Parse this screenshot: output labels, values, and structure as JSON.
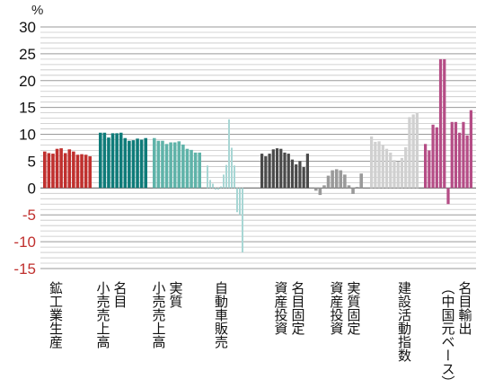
{
  "chart_data": {
    "type": "bar",
    "unit_label": "%",
    "ylim": [
      -15,
      30
    ],
    "yticks": [
      30,
      25,
      20,
      15,
      10,
      5,
      0,
      -5,
      -10,
      -15
    ],
    "minor_gridlines": true,
    "grid": true,
    "groups": [
      {
        "label_lines": [
          "鉱工業生産"
        ],
        "color": "#c0302e",
        "values": [
          6.8,
          6.5,
          6.4,
          7.3,
          7.4,
          6.5,
          7.2,
          6.8,
          6.2,
          6.3,
          6.2,
          5.9
        ]
      },
      {
        "label_lines": [
          "名目",
          "小売売上高"
        ],
        "color": "#0e7b79",
        "values": [
          10.3,
          10.3,
          9.4,
          10.2,
          10.2,
          10.3,
          9.3,
          8.8,
          8.9,
          9.2,
          9.0,
          9.3
        ]
      },
      {
        "label_lines": [
          "実質",
          "小売売上高"
        ],
        "color": "#5fb3a9",
        "values": [
          9.3,
          8.8,
          8.8,
          8.2,
          8.5,
          8.5,
          8.7,
          8.1,
          7.3,
          7.1,
          6.6,
          6.6
        ]
      },
      {
        "label_lines": [
          "自動車販売"
        ],
        "color": "#a8d6d4",
        "values": [
          4.2,
          1.5,
          0.8,
          -0.3,
          -0.3,
          0.3,
          2.5,
          4.3,
          12.8,
          7.5,
          4.2,
          -4.5,
          -5.0,
          -12.0
        ]
      },
      {
        "label_lines": [
          "名目固定",
          "資産投資"
        ],
        "color": "#4a4a4a",
        "values": [
          6.4,
          5.9,
          6.4,
          7.2,
          7.4,
          7.3,
          6.6,
          6.4,
          5.3,
          4.4,
          5.0,
          3.9,
          6.4
        ]
      },
      {
        "label_lines": [
          "実質固定",
          "資産投資"
        ],
        "color": "#9a9a9a",
        "values": [
          -0.5,
          -1.3,
          0.5,
          2.3,
          3.3,
          3.5,
          3.3,
          2.5,
          0.5,
          -1.1,
          0.2,
          2.7
        ]
      },
      {
        "label_lines": [
          "建設活動指数"
        ],
        "color": "#d0d0d0",
        "values": [
          9.6,
          8.6,
          8.7,
          8.0,
          7.3,
          6.6,
          5.2,
          4.9,
          5.6,
          7.6,
          13.2,
          13.7,
          14.0
        ]
      },
      {
        "label_lines": [
          "名目輸出",
          "（中国元ベース）"
        ],
        "color": "#b54d86",
        "values": [
          8.2,
          7.0,
          11.8,
          11.3,
          24.0,
          24.0,
          -3.0,
          12.3,
          12.3,
          10.3,
          12.3,
          9.8,
          14.5
        ]
      }
    ]
  }
}
